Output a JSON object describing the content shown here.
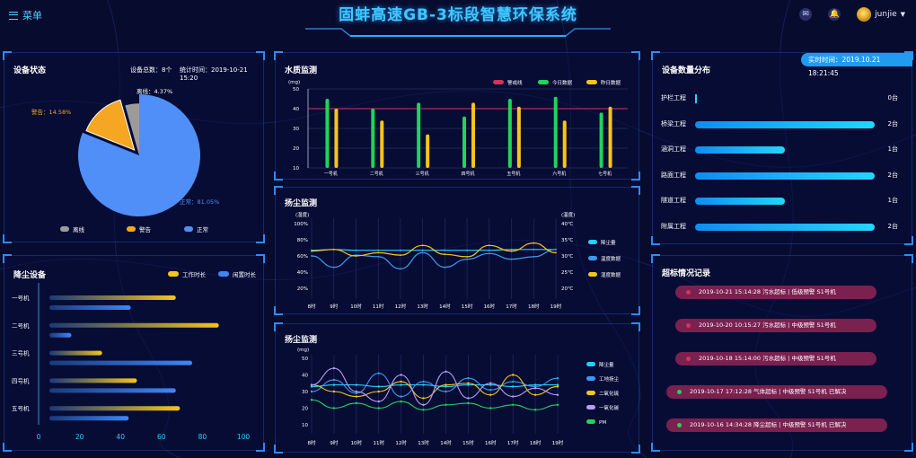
{
  "header": {
    "menu_label": "菜单",
    "title": "固蚌高速GB-3标段智慧环保系统",
    "username": "junjie",
    "icons": [
      "mail-icon",
      "bell-icon",
      "avatar",
      "chevron-down-icon"
    ]
  },
  "device_status": {
    "title": "设备状态",
    "count_text": "设备总数：8个",
    "time_text": "统计时间：2019-10-21 15:20",
    "chart_data": {
      "type": "pie",
      "slices": [
        {
          "name": "正常",
          "value": 81.05,
          "label": "正常：81.05%",
          "color": "#4f8ff7"
        },
        {
          "name": "警告",
          "value": 14.58,
          "label": "警告：14.58%",
          "color": "#f5a623"
        },
        {
          "name": "离线",
          "value": 4.37,
          "label": "离线：4.37%",
          "color": "#9b9b9b"
        }
      ],
      "legend": [
        "离线",
        "警告",
        "正常"
      ]
    }
  },
  "dust_devices": {
    "title": "降尘设备",
    "chart_data": {
      "type": "bar",
      "orientation": "horizontal",
      "categories": [
        "一号机",
        "二号机",
        "三号机",
        "四号机",
        "五号机"
      ],
      "series": [
        {
          "name": "工作时长",
          "values": [
            67,
            88,
            31,
            48,
            69
          ],
          "color": "#f5c518"
        },
        {
          "name": "闲置时长",
          "values": [
            45,
            16,
            75,
            67,
            44
          ],
          "color": "#3f86f5"
        }
      ],
      "xlim": [
        0,
        100
      ],
      "xticks": [
        "0",
        "20",
        "40",
        "60",
        "80",
        "100"
      ]
    }
  },
  "water_quality": {
    "title": "水质监测",
    "chart_data": {
      "type": "bar",
      "categories": [
        "一号机",
        "二号机",
        "三号机",
        "四号机",
        "五号机",
        "六号机",
        "七号机"
      ],
      "series": [
        {
          "name": "今日数据",
          "values": [
            45,
            40,
            43,
            36,
            45,
            46,
            38
          ],
          "color": "#1fd45a"
        },
        {
          "name": "昨日数据",
          "values": [
            40,
            34,
            27,
            43,
            41,
            34,
            41
          ],
          "color": "#f5c518"
        }
      ],
      "threshold": {
        "name": "警戒线",
        "value": 40,
        "color": "#d2345a"
      },
      "ylabel": "(mg)",
      "ylim": [
        10,
        50
      ],
      "yticks": [
        "10",
        "20",
        "30",
        "40",
        "50"
      ]
    }
  },
  "dust_monitor_1": {
    "title": "扬尘监测",
    "chart_data": {
      "type": "line",
      "x": [
        "8时",
        "9时",
        "10时",
        "11时",
        "12时",
        "13时",
        "14时",
        "15时",
        "16时",
        "17时",
        "18时",
        "19时"
      ],
      "series": [
        {
          "name": "降尘量",
          "values": [
            67,
            68,
            67,
            67,
            67,
            67,
            67,
            67,
            67,
            68,
            68,
            68
          ],
          "color": "#25d0ff"
        },
        {
          "name": "温度数据",
          "values": [
            60,
            46,
            61,
            59,
            44,
            64,
            46,
            56,
            63,
            56,
            59,
            68
          ],
          "color": "#3a9cf0"
        },
        {
          "name": "湿度数据",
          "values": [
            66,
            68,
            60,
            64,
            61,
            73,
            62,
            59,
            73,
            66,
            76,
            64
          ],
          "color": "#f5c518"
        }
      ],
      "ylabel_left": "(湿度)",
      "ylabel_right": "(温度)",
      "yticks_left": [
        "20%",
        "40%",
        "60%",
        "80%",
        "100%"
      ],
      "yticks_right": [
        "20℃",
        "25℃",
        "30℃",
        "35℃",
        "40℃"
      ]
    }
  },
  "dust_monitor_2": {
    "title": "扬尘监测",
    "chart_data": {
      "type": "line",
      "x": [
        "8时",
        "9时",
        "10时",
        "11时",
        "12时",
        "13时",
        "14时",
        "15时",
        "16时",
        "17时",
        "18时",
        "19时"
      ],
      "series": [
        {
          "name": "降尘量",
          "values": [
            33,
            34,
            34,
            33,
            34,
            34,
            33,
            34,
            34,
            33,
            34,
            34
          ],
          "color": "#25d0ff"
        },
        {
          "name": "工地扬尘",
          "values": [
            30,
            37,
            29,
            41,
            27,
            36,
            30,
            38,
            31,
            36,
            33,
            38
          ],
          "color": "#3a9cf0"
        },
        {
          "name": "二氧化硫",
          "values": [
            34,
            30,
            27,
            30,
            36,
            26,
            34,
            35,
            28,
            40,
            28,
            33
          ],
          "color": "#f5c518"
        },
        {
          "name": "一氧化碳",
          "values": [
            34,
            44,
            30,
            24,
            40,
            22,
            42,
            26,
            35,
            27,
            32,
            28
          ],
          "color": "#b79cf5"
        },
        {
          "name": "PM",
          "values": [
            25,
            20,
            23,
            20,
            24,
            19,
            22,
            23,
            20,
            22,
            19,
            22
          ],
          "color": "#1fd45a"
        }
      ],
      "ylabel": "(mg)",
      "ylim": [
        10,
        50
      ],
      "yticks": [
        "10",
        "20",
        "30",
        "40",
        "50"
      ]
    }
  },
  "device_distribution": {
    "title": "设备数量分布",
    "realtime_label": "实时时间：2019.10.21 18:21:45",
    "items": [
      {
        "label": "护栏工程",
        "count": 0,
        "value": "0台"
      },
      {
        "label": "桥梁工程",
        "count": 2,
        "value": "2台"
      },
      {
        "label": "涵洞工程",
        "count": 1,
        "value": "1台"
      },
      {
        "label": "路面工程",
        "count": 2,
        "value": "2台"
      },
      {
        "label": "隧道工程",
        "count": 1,
        "value": "1台"
      },
      {
        "label": "附属工程",
        "count": 2,
        "value": "2台"
      }
    ]
  },
  "alarms": {
    "title": "超标情况记录",
    "items": [
      {
        "text": "2019-10-21 15:14:28  污水超标 | 低级预警   S1号机",
        "dot": "#d2345a"
      },
      {
        "text": "2019-10-20 10:15:27  污水超标 | 中级预警   S1号机",
        "dot": "#d2345a"
      },
      {
        "text": "2019-10-18 15:14:00  污水超标 | 中级预警   S1号机",
        "dot": "#d2345a"
      },
      {
        "text": "2019-10-17 17:12:28  气体超标 | 中级预警   S1号机   已解决",
        "dot": "#1fd45a"
      },
      {
        "text": "2019-10-16 14:34:28  降尘超标 | 中级预警   S1号机   已解决",
        "dot": "#1fd45a"
      }
    ]
  }
}
